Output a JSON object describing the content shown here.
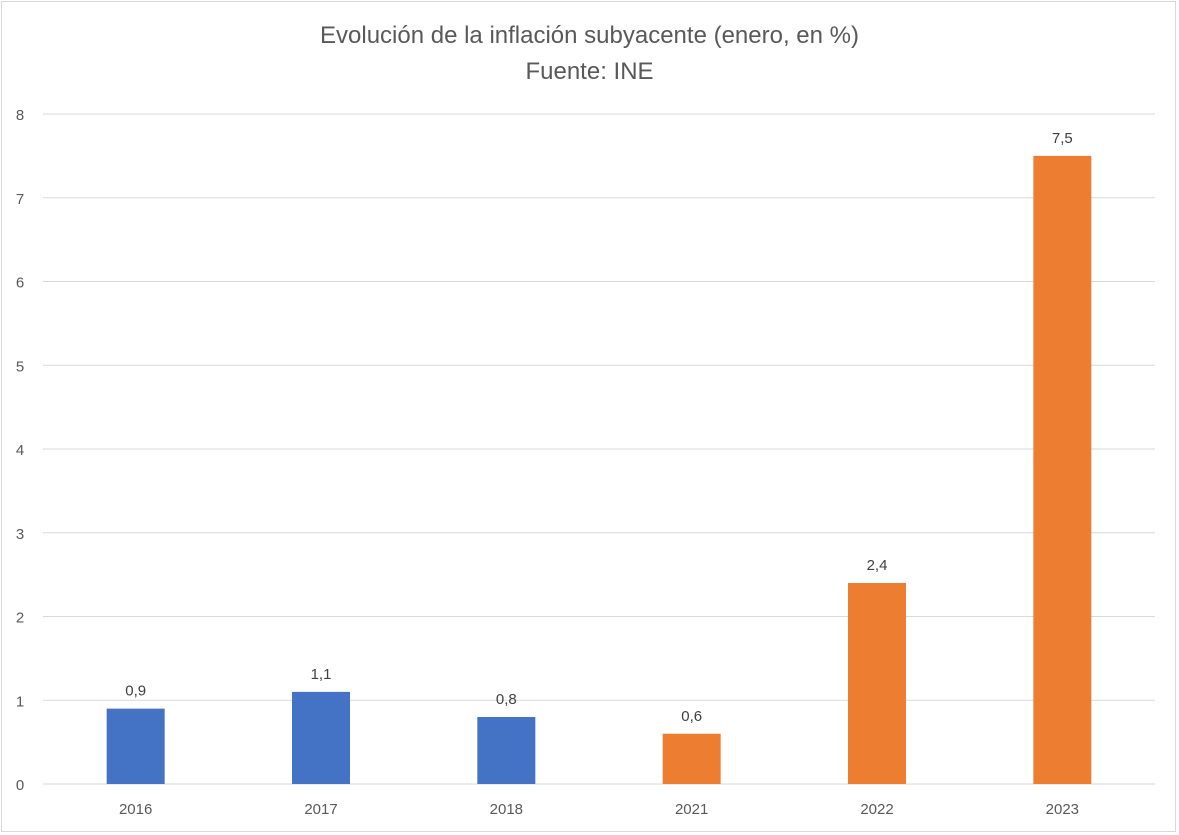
{
  "chart_data": {
    "type": "bar",
    "title": "Evolución de la inflación subyacente (enero, en %)",
    "subtitle": "Fuente: INE",
    "categories": [
      "2016",
      "2017",
      "2018",
      "2021",
      "2022",
      "2023"
    ],
    "values": [
      0.9,
      1.1,
      0.8,
      0.6,
      2.4,
      7.5
    ],
    "data_labels": [
      "0,9",
      "1,1",
      "0,8",
      "0,6",
      "2,4",
      "7,5"
    ],
    "bar_colors": [
      "#4472C4",
      "#4472C4",
      "#4472C4",
      "#ED7D31",
      "#ED7D31",
      "#ED7D31"
    ],
    "ylim": [
      0,
      8
    ],
    "yticks": [
      0,
      1,
      2,
      3,
      4,
      5,
      6,
      7,
      8
    ],
    "grid": true,
    "xlabel": "",
    "ylabel": ""
  }
}
